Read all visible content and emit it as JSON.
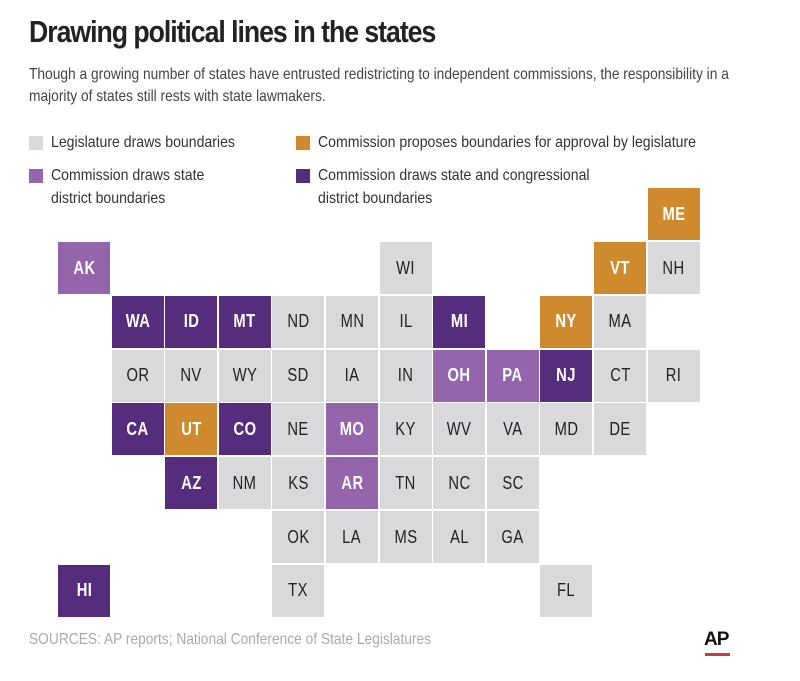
{
  "title": "Drawing political lines in the states",
  "subtitle": "Though a growing number of states have entrusted redistricting to independent commissions, the responsibility in a majority of states still rests with state lawmakers.",
  "colors": {
    "legislature": "#d9d9db",
    "proposes": "#cf8a2e",
    "state": "#9465aa",
    "both": "#552d7c"
  },
  "legend": [
    {
      "key": "legislature",
      "label": "Legislature draws boundaries"
    },
    {
      "key": "proposes",
      "label": "Commission proposes boundaries for approval by legislature"
    },
    {
      "key": "state",
      "label": "Commission draws state district boundaries"
    },
    {
      "key": "both",
      "label": "Commission draws state and congressional district boundaries"
    }
  ],
  "legend_lines": {
    "state": [
      "Commission draws state",
      "district boundaries"
    ],
    "both": [
      "Commission draws state and congressional",
      "district boundaries"
    ]
  },
  "states": [
    {
      "abbr": "ME",
      "col": 11,
      "row": -1,
      "cat": "proposes"
    },
    {
      "abbr": "AK",
      "col": 0,
      "row": 0,
      "cat": "state"
    },
    {
      "abbr": "WI",
      "col": 6,
      "row": 0,
      "cat": "legislature"
    },
    {
      "abbr": "VT",
      "col": 10,
      "row": 0,
      "cat": "proposes"
    },
    {
      "abbr": "NH",
      "col": 11,
      "row": 0,
      "cat": "legislature"
    },
    {
      "abbr": "WA",
      "col": 1,
      "row": 1,
      "cat": "both"
    },
    {
      "abbr": "ID",
      "col": 2,
      "row": 1,
      "cat": "both"
    },
    {
      "abbr": "MT",
      "col": 3,
      "row": 1,
      "cat": "both"
    },
    {
      "abbr": "ND",
      "col": 4,
      "row": 1,
      "cat": "legislature"
    },
    {
      "abbr": "MN",
      "col": 5,
      "row": 1,
      "cat": "legislature"
    },
    {
      "abbr": "IL",
      "col": 6,
      "row": 1,
      "cat": "legislature"
    },
    {
      "abbr": "MI",
      "col": 7,
      "row": 1,
      "cat": "both"
    },
    {
      "abbr": "NY",
      "col": 9,
      "row": 1,
      "cat": "proposes"
    },
    {
      "abbr": "MA",
      "col": 10,
      "row": 1,
      "cat": "legislature"
    },
    {
      "abbr": "OR",
      "col": 1,
      "row": 2,
      "cat": "legislature"
    },
    {
      "abbr": "NV",
      "col": 2,
      "row": 2,
      "cat": "legislature"
    },
    {
      "abbr": "WY",
      "col": 3,
      "row": 2,
      "cat": "legislature"
    },
    {
      "abbr": "SD",
      "col": 4,
      "row": 2,
      "cat": "legislature"
    },
    {
      "abbr": "IA",
      "col": 5,
      "row": 2,
      "cat": "legislature"
    },
    {
      "abbr": "IN",
      "col": 6,
      "row": 2,
      "cat": "legislature"
    },
    {
      "abbr": "OH",
      "col": 7,
      "row": 2,
      "cat": "state"
    },
    {
      "abbr": "PA",
      "col": 8,
      "row": 2,
      "cat": "state"
    },
    {
      "abbr": "NJ",
      "col": 9,
      "row": 2,
      "cat": "both"
    },
    {
      "abbr": "CT",
      "col": 10,
      "row": 2,
      "cat": "legislature"
    },
    {
      "abbr": "RI",
      "col": 11,
      "row": 2,
      "cat": "legislature"
    },
    {
      "abbr": "CA",
      "col": 1,
      "row": 3,
      "cat": "both"
    },
    {
      "abbr": "UT",
      "col": 2,
      "row": 3,
      "cat": "proposes"
    },
    {
      "abbr": "CO",
      "col": 3,
      "row": 3,
      "cat": "both"
    },
    {
      "abbr": "NE",
      "col": 4,
      "row": 3,
      "cat": "legislature"
    },
    {
      "abbr": "MO",
      "col": 5,
      "row": 3,
      "cat": "state"
    },
    {
      "abbr": "KY",
      "col": 6,
      "row": 3,
      "cat": "legislature"
    },
    {
      "abbr": "WV",
      "col": 7,
      "row": 3,
      "cat": "legislature"
    },
    {
      "abbr": "VA",
      "col": 8,
      "row": 3,
      "cat": "legislature"
    },
    {
      "abbr": "MD",
      "col": 9,
      "row": 3,
      "cat": "legislature"
    },
    {
      "abbr": "DE",
      "col": 10,
      "row": 3,
      "cat": "legislature"
    },
    {
      "abbr": "AZ",
      "col": 2,
      "row": 4,
      "cat": "both"
    },
    {
      "abbr": "NM",
      "col": 3,
      "row": 4,
      "cat": "legislature"
    },
    {
      "abbr": "KS",
      "col": 4,
      "row": 4,
      "cat": "legislature"
    },
    {
      "abbr": "AR",
      "col": 5,
      "row": 4,
      "cat": "state"
    },
    {
      "abbr": "TN",
      "col": 6,
      "row": 4,
      "cat": "legislature"
    },
    {
      "abbr": "NC",
      "col": 7,
      "row": 4,
      "cat": "legislature"
    },
    {
      "abbr": "SC",
      "col": 8,
      "row": 4,
      "cat": "legislature"
    },
    {
      "abbr": "OK",
      "col": 4,
      "row": 5,
      "cat": "legislature"
    },
    {
      "abbr": "LA",
      "col": 5,
      "row": 5,
      "cat": "legislature"
    },
    {
      "abbr": "MS",
      "col": 6,
      "row": 5,
      "cat": "legislature"
    },
    {
      "abbr": "AL",
      "col": 7,
      "row": 5,
      "cat": "legislature"
    },
    {
      "abbr": "GA",
      "col": 8,
      "row": 5,
      "cat": "legislature"
    },
    {
      "abbr": "HI",
      "col": 0,
      "row": 6,
      "cat": "both"
    },
    {
      "abbr": "TX",
      "col": 4,
      "row": 6,
      "cat": "legislature"
    },
    {
      "abbr": "FL",
      "col": 9,
      "row": 6,
      "cat": "legislature"
    }
  ],
  "sources": "SOURCES: AP reports; National Conference of State Legislatures",
  "logo": "AP"
}
